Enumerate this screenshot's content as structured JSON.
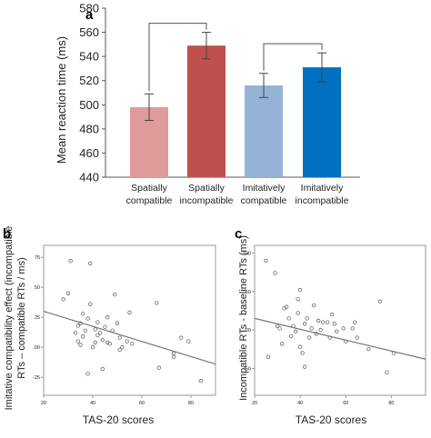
{
  "chart_data": [
    {
      "panel": "a",
      "type": "bar",
      "title": "",
      "categories": [
        [
          "Spatially",
          "compatible"
        ],
        [
          "Spatially",
          "incompatible"
        ],
        [
          "Imitatively",
          "compatible"
        ],
        [
          "Imitatively",
          "incompatible"
        ]
      ],
      "values": [
        498,
        549,
        516,
        531
      ],
      "errors": [
        11,
        11,
        10,
        12
      ],
      "colors": [
        "#df9a9a",
        "#c0504d",
        "#95b3d7",
        "#0070c0"
      ],
      "ylabel": "Mean reaction time (ms)",
      "xlabel": "",
      "ylim": [
        440,
        580
      ],
      "yticks": [
        440,
        460,
        480,
        500,
        520,
        540,
        560,
        580
      ],
      "brackets": [
        [
          0,
          1
        ],
        [
          2,
          3
        ]
      ],
      "grid": false
    },
    {
      "panel": "b",
      "type": "scatter",
      "title": "",
      "xlabel": "TAS-20 scores",
      "ylabel": [
        "Imitative compatibility effect (incompatible",
        "RTs – compatible RTs / ms)"
      ],
      "xlim": [
        20,
        90
      ],
      "ylim": [
        -40,
        85
      ],
      "xticks": [
        20,
        40,
        60,
        80
      ],
      "yticks": [
        -25,
        0,
        25,
        50,
        75
      ],
      "ytick_labels": [
        "-25",
        ".00",
        "25",
        "50",
        "75"
      ],
      "points": [
        [
          28,
          40
        ],
        [
          30,
          45
        ],
        [
          31,
          72
        ],
        [
          33,
          12
        ],
        [
          34,
          18
        ],
        [
          34,
          5
        ],
        [
          35,
          20
        ],
        [
          35,
          2
        ],
        [
          36,
          28
        ],
        [
          36,
          9
        ],
        [
          37,
          14
        ],
        [
          38,
          24
        ],
        [
          38,
          -22
        ],
        [
          39,
          70
        ],
        [
          39,
          36
        ],
        [
          40,
          0
        ],
        [
          41,
          15
        ],
        [
          41,
          4
        ],
        [
          42,
          21
        ],
        [
          42,
          10
        ],
        [
          43,
          12
        ],
        [
          44,
          6
        ],
        [
          44,
          -18
        ],
        [
          45,
          17
        ],
        [
          46,
          25
        ],
        [
          46,
          4
        ],
        [
          47,
          3
        ],
        [
          48,
          14
        ],
        [
          49,
          44
        ],
        [
          50,
          20
        ],
        [
          51,
          8
        ],
        [
          51,
          -2
        ],
        [
          52,
          0
        ],
        [
          54,
          5
        ],
        [
          55,
          29
        ],
        [
          56,
          3
        ],
        [
          66,
          37
        ],
        [
          67,
          -17
        ],
        [
          73,
          -5
        ],
        [
          73,
          -8
        ],
        [
          76,
          8
        ],
        [
          79,
          5
        ],
        [
          84,
          -28
        ]
      ],
      "fit_line": [
        [
          20,
          30
        ],
        [
          90,
          -14
        ]
      ],
      "grid": false
    },
    {
      "panel": "c",
      "type": "scatter",
      "title": "",
      "xlabel": "TAS-20 scores",
      "ylabel": "Incompatible RTs - baseline RTs (ms)",
      "xlim": [
        20,
        95
      ],
      "ylim": [
        -85,
        110
      ],
      "xticks": [
        20,
        40,
        60,
        80
      ],
      "yticks": [
        -50,
        0,
        50,
        100
      ],
      "ytick_labels": [
        "-50",
        ".00",
        "50",
        "100"
      ],
      "points": [
        [
          25,
          90
        ],
        [
          26,
          -35
        ],
        [
          29,
          74
        ],
        [
          30,
          5
        ],
        [
          31,
          2
        ],
        [
          32,
          -18
        ],
        [
          33,
          28
        ],
        [
          34,
          30
        ],
        [
          35,
          15
        ],
        [
          36,
          -8
        ],
        [
          37,
          5
        ],
        [
          38,
          -2
        ],
        [
          39,
          40
        ],
        [
          39,
          22
        ],
        [
          40,
          52
        ],
        [
          40,
          -22
        ],
        [
          41,
          -30
        ],
        [
          42,
          8
        ],
        [
          42,
          -48
        ],
        [
          43,
          15
        ],
        [
          44,
          -10
        ],
        [
          45,
          2
        ],
        [
          46,
          32
        ],
        [
          47,
          -5
        ],
        [
          48,
          12
        ],
        [
          49,
          0
        ],
        [
          50,
          10
        ],
        [
          52,
          10
        ],
        [
          53,
          -10
        ],
        [
          54,
          20
        ],
        [
          55,
          8
        ],
        [
          56,
          -2
        ],
        [
          59,
          2
        ],
        [
          60,
          -15
        ],
        [
          63,
          2
        ],
        [
          64,
          10
        ],
        [
          65,
          -10
        ],
        [
          70,
          -25
        ],
        [
          75,
          37
        ],
        [
          78,
          -55
        ],
        [
          81,
          -30
        ]
      ],
      "fit_line": [
        [
          20,
          15
        ],
        [
          95,
          -38
        ]
      ],
      "grid": false
    }
  ]
}
